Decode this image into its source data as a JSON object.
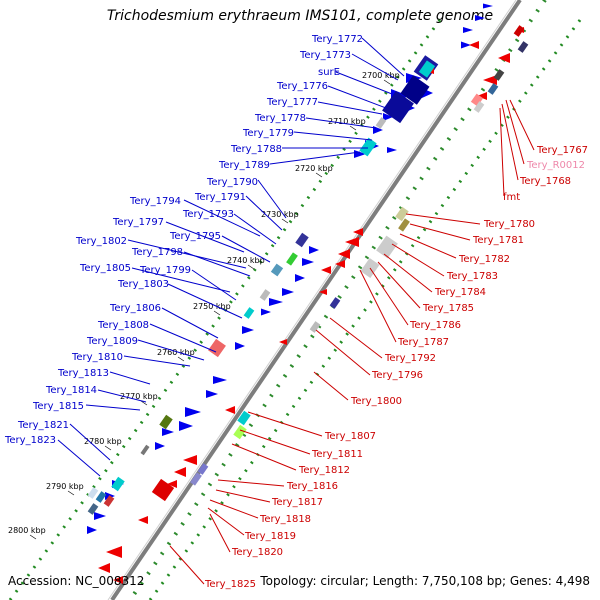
{
  "header": {
    "title": "Trichodesmium erythraeum IMS101, complete genome"
  },
  "footer": {
    "accession": "Accession: NC_008312",
    "topology": "Topology: circular; Length: 7,750,108 bp; Genes: 4,498"
  },
  "colors": {
    "forward_label": "#0000cc",
    "reverse_label": "#cc0000",
    "rna_label": "#ee88aa",
    "backbone": "#888888",
    "forward_cds": "#0000ee",
    "reverse_cds": "#ee0000",
    "ruler_dots": "#228b22"
  },
  "kbp_ticks": [
    "2700 kbp",
    "2710 kbp",
    "2720 kbp",
    "2730 kbp",
    "2740 kbp",
    "2750 kbp",
    "2760 kbp",
    "2770 kbp",
    "2780 kbp",
    "2790 kbp",
    "2800 kbp"
  ],
  "forward_labels": [
    "Tery_1772",
    "Tery_1773",
    "surE",
    "Tery_1776",
    "Tery_1777",
    "Tery_1778",
    "Tery_1779",
    "Tery_1788",
    "Tery_1789",
    "Tery_1790",
    "Tery_1791",
    "Tery_1794",
    "Tery_1793",
    "Tery_1797",
    "Tery_1795",
    "Tery_1802",
    "Tery_1798",
    "Tery_1805",
    "Tery_1799",
    "Tery_1803",
    "Tery_1806",
    "Tery_1808",
    "Tery_1809",
    "Tery_1810",
    "Tery_1813",
    "Tery_1814",
    "Tery_1815",
    "Tery_1821",
    "Tery_1823"
  ],
  "reverse_labels": [
    "Tery_1767",
    "Tery_R0012",
    "Tery_1768",
    "fmt",
    "Tery_1780",
    "Tery_1781",
    "Tery_1782",
    "Tery_1783",
    "Tery_1784",
    "Tery_1785",
    "Tery_1786",
    "Tery_1787",
    "Tery_1792",
    "Tery_1796",
    "Tery_1800",
    "Tery_1807",
    "Tery_1811",
    "Tery_1812",
    "Tery_1816",
    "Tery_1817",
    "Tery_1818",
    "Tery_1819",
    "Tery_1820",
    "Tery_1825"
  ]
}
